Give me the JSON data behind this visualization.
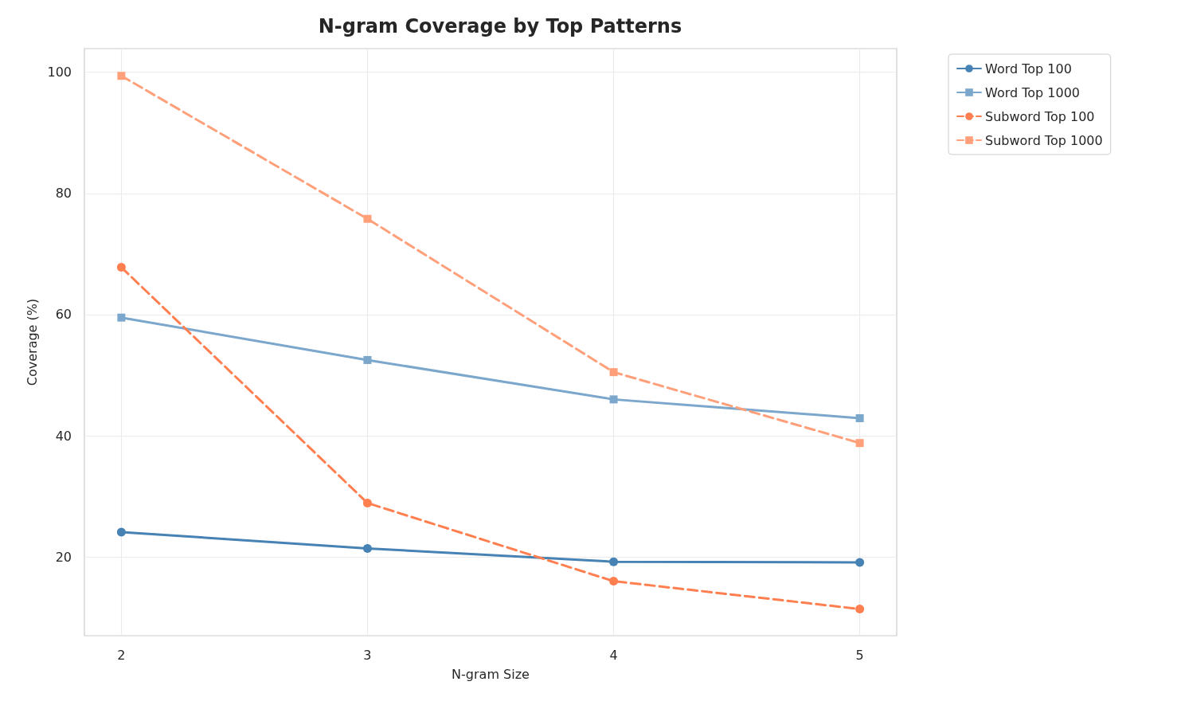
{
  "chart_data": {
    "type": "line",
    "title": "N-gram Coverage by Top Patterns",
    "xlabel": "N-gram Size",
    "ylabel": "Coverage (%)",
    "x": [
      2,
      3,
      4,
      5
    ],
    "xlim": [
      1.85,
      5.15
    ],
    "xticks": [
      2,
      3,
      4,
      5
    ],
    "ylim": [
      7,
      103.9
    ],
    "yticks": [
      20,
      40,
      60,
      80,
      100
    ],
    "grid": true,
    "legend": "top right",
    "series": [
      {
        "name": "Word Top 100",
        "color": "#4682b4",
        "marker": "circle",
        "line_style": "solid",
        "values": [
          24.1,
          21.4,
          19.2,
          19.1
        ]
      },
      {
        "name": "Word Top 1000",
        "color": "#7ba7cc",
        "marker": "square",
        "line_style": "solid",
        "values": [
          59.5,
          52.5,
          46.0,
          42.9
        ]
      },
      {
        "name": "Subword Top 100",
        "color": "#ff7f50",
        "marker": "circle",
        "line_style": "dashed",
        "values": [
          67.8,
          28.9,
          16.0,
          11.4
        ]
      },
      {
        "name": "Subword Top 1000",
        "color": "#ffa07a",
        "marker": "square",
        "line_style": "dashed",
        "values": [
          99.4,
          75.8,
          50.5,
          38.8
        ]
      }
    ]
  }
}
